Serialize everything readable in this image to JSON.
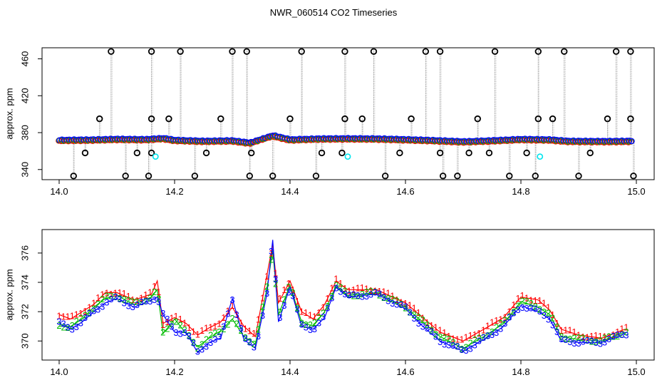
{
  "title": "NWR_060514  CO2 Timeseries",
  "colors": {
    "series_1": "#ff0000",
    "series_2": "#00bb00",
    "series_3": "#0000ff",
    "flag_outlier": "#000000",
    "flag_cyan": "#00e5ee",
    "spike_line": "#999999"
  },
  "chart_data": [
    {
      "type": "scatter",
      "name": "top",
      "xlabel": "",
      "ylabel": "approx. ppm",
      "xlim": [
        14.0,
        15.0
      ],
      "ylim": [
        329,
        472
      ],
      "x_ticks": [
        "14.0",
        "14.2",
        "14.4",
        "14.6",
        "14.8",
        "15.0"
      ],
      "y_ticks": [
        "340",
        "380",
        "420",
        "460"
      ],
      "grid": false,
      "baseline": [
        [
          14.0,
          371.5
        ],
        [
          14.05,
          371.8
        ],
        [
          14.1,
          372.6
        ],
        [
          14.15,
          372.3
        ],
        [
          14.18,
          373.5
        ],
        [
          14.2,
          371.5
        ],
        [
          14.25,
          370.5
        ],
        [
          14.3,
          371.0
        ],
        [
          14.33,
          368.5
        ],
        [
          14.37,
          376.5
        ],
        [
          14.4,
          372.0
        ],
        [
          14.45,
          373.0
        ],
        [
          14.5,
          373.2
        ],
        [
          14.55,
          373.0
        ],
        [
          14.6,
          372.2
        ],
        [
          14.65,
          371.2
        ],
        [
          14.7,
          369.9
        ],
        [
          14.75,
          371.0
        ],
        [
          14.8,
          372.5
        ],
        [
          14.85,
          372.0
        ],
        [
          14.88,
          370.5
        ],
        [
          14.95,
          370.2
        ],
        [
          14.99,
          370.5
        ]
      ],
      "outliers_high": [
        14.09,
        14.16,
        14.21,
        14.3,
        14.325,
        14.42,
        14.495,
        14.545,
        14.635,
        14.66,
        14.755,
        14.83,
        14.875,
        14.965,
        14.99
      ],
      "outliers_mid": [
        14.07,
        14.16,
        14.19,
        14.28,
        14.4,
        14.495,
        14.525,
        14.61,
        14.725,
        14.83,
        14.855,
        14.95,
        14.99
      ],
      "outliers_low": [
        14.025,
        14.115,
        14.155,
        14.235,
        14.33,
        14.37,
        14.445,
        14.565,
        14.665,
        14.69,
        14.78,
        14.825,
        14.9,
        14.995
      ],
      "outliers_below": [
        14.045,
        14.135,
        14.16,
        14.255,
        14.333,
        14.455,
        14.49,
        14.59,
        14.66,
        14.71,
        14.745,
        14.81,
        14.92
      ],
      "cyan_points": [
        [
          14.167,
          354
        ],
        [
          14.5,
          354
        ],
        [
          14.833,
          354
        ]
      ]
    },
    {
      "type": "line",
      "name": "bottom",
      "xlabel": "",
      "ylabel": "approx. ppm",
      "xlim": [
        14.0,
        15.0
      ],
      "ylim": [
        368.7,
        377.6
      ],
      "x_ticks": [
        "14.0",
        "14.2",
        "14.4",
        "14.6",
        "14.8",
        "15.0"
      ],
      "y_ticks": [
        "370",
        "372",
        "374",
        "376"
      ],
      "grid": false,
      "marker_labels": [
        "1",
        "2",
        "3"
      ],
      "series": [
        {
          "marker": "1",
          "values": [
            [
              14.0,
              371.8
            ],
            [
              14.02,
              371.5
            ],
            [
              14.04,
              372.0
            ],
            [
              14.06,
              372.5
            ],
            [
              14.08,
              373.3
            ],
            [
              14.1,
              373.3
            ],
            [
              14.13,
              372.8
            ],
            [
              14.16,
              373.2
            ],
            [
              14.17,
              374.1
            ],
            [
              14.18,
              371.2
            ],
            [
              14.2,
              371.6
            ],
            [
              14.22,
              371.2
            ],
            [
              14.24,
              370.4
            ],
            [
              14.26,
              370.9
            ],
            [
              14.28,
              371.3
            ],
            [
              14.3,
              372.3
            ],
            [
              14.32,
              371.0
            ],
            [
              14.34,
              370.3
            ],
            [
              14.36,
              374.5
            ],
            [
              14.37,
              376.6
            ],
            [
              14.38,
              372.6
            ],
            [
              14.4,
              374.1
            ],
            [
              14.42,
              372.0
            ],
            [
              14.44,
              371.5
            ],
            [
              14.46,
              372.5
            ],
            [
              14.48,
              374.1
            ],
            [
              14.5,
              373.5
            ],
            [
              14.55,
              373.5
            ],
            [
              14.6,
              372.6
            ],
            [
              14.63,
              371.6
            ],
            [
              14.66,
              370.6
            ],
            [
              14.7,
              370.0
            ],
            [
              14.74,
              370.9
            ],
            [
              14.77,
              371.6
            ],
            [
              14.8,
              373.0
            ],
            [
              14.83,
              372.8
            ],
            [
              14.85,
              372.1
            ],
            [
              14.87,
              370.8
            ],
            [
              14.9,
              370.4
            ],
            [
              14.94,
              370.2
            ],
            [
              14.98,
              370.8
            ]
          ]
        },
        {
          "marker": "2",
          "values": [
            [
              14.0,
              371.0
            ],
            [
              14.02,
              371.0
            ],
            [
              14.04,
              371.5
            ],
            [
              14.06,
              372.3
            ],
            [
              14.08,
              372.9
            ],
            [
              14.1,
              373.1
            ],
            [
              14.13,
              372.5
            ],
            [
              14.16,
              373.0
            ],
            [
              14.17,
              373.5
            ],
            [
              14.18,
              370.5
            ],
            [
              14.2,
              371.5
            ],
            [
              14.22,
              370.5
            ],
            [
              14.24,
              369.6
            ],
            [
              14.26,
              370.2
            ],
            [
              14.28,
              370.7
            ],
            [
              14.3,
              371.5
            ],
            [
              14.32,
              370.3
            ],
            [
              14.34,
              369.8
            ],
            [
              14.36,
              373.6
            ],
            [
              14.37,
              376.2
            ],
            [
              14.38,
              371.8
            ],
            [
              14.4,
              373.8
            ],
            [
              14.42,
              371.3
            ],
            [
              14.44,
              371.0
            ],
            [
              14.46,
              372.0
            ],
            [
              14.48,
              373.8
            ],
            [
              14.5,
              373.1
            ],
            [
              14.55,
              373.3
            ],
            [
              14.6,
              372.3
            ],
            [
              14.63,
              371.3
            ],
            [
              14.66,
              370.3
            ],
            [
              14.7,
              369.5
            ],
            [
              14.74,
              370.4
            ],
            [
              14.77,
              371.2
            ],
            [
              14.8,
              372.7
            ],
            [
              14.83,
              372.3
            ],
            [
              14.85,
              371.8
            ],
            [
              14.87,
              370.3
            ],
            [
              14.9,
              370.1
            ],
            [
              14.94,
              370.0
            ],
            [
              14.98,
              370.6
            ]
          ]
        },
        {
          "marker": "3",
          "values": [
            [
              14.0,
              371.2
            ],
            [
              14.02,
              370.8
            ],
            [
              14.04,
              371.3
            ],
            [
              14.06,
              372.0
            ],
            [
              14.08,
              372.6
            ],
            [
              14.1,
              372.9
            ],
            [
              14.13,
              372.3
            ],
            [
              14.16,
              372.8
            ],
            [
              14.17,
              373.0
            ],
            [
              14.18,
              371.8
            ],
            [
              14.2,
              370.6
            ],
            [
              14.22,
              370.6
            ],
            [
              14.24,
              369.2
            ],
            [
              14.26,
              369.9
            ],
            [
              14.28,
              370.2
            ],
            [
              14.3,
              372.9
            ],
            [
              14.32,
              370.1
            ],
            [
              14.34,
              369.5
            ],
            [
              14.36,
              373.2
            ],
            [
              14.37,
              376.9
            ],
            [
              14.38,
              371.3
            ],
            [
              14.4,
              373.7
            ],
            [
              14.42,
              371.0
            ],
            [
              14.44,
              370.8
            ],
            [
              14.46,
              371.6
            ],
            [
              14.48,
              373.7
            ],
            [
              14.5,
              373.0
            ],
            [
              14.55,
              373.2
            ],
            [
              14.6,
              372.2
            ],
            [
              14.63,
              371.0
            ],
            [
              14.66,
              370.0
            ],
            [
              14.7,
              369.3
            ],
            [
              14.74,
              370.2
            ],
            [
              14.77,
              371.0
            ],
            [
              14.8,
              372.4
            ],
            [
              14.83,
              372.0
            ],
            [
              14.85,
              371.5
            ],
            [
              14.87,
              370.0
            ],
            [
              14.9,
              369.9
            ],
            [
              14.94,
              369.9
            ],
            [
              14.98,
              370.5
            ]
          ]
        }
      ]
    }
  ]
}
